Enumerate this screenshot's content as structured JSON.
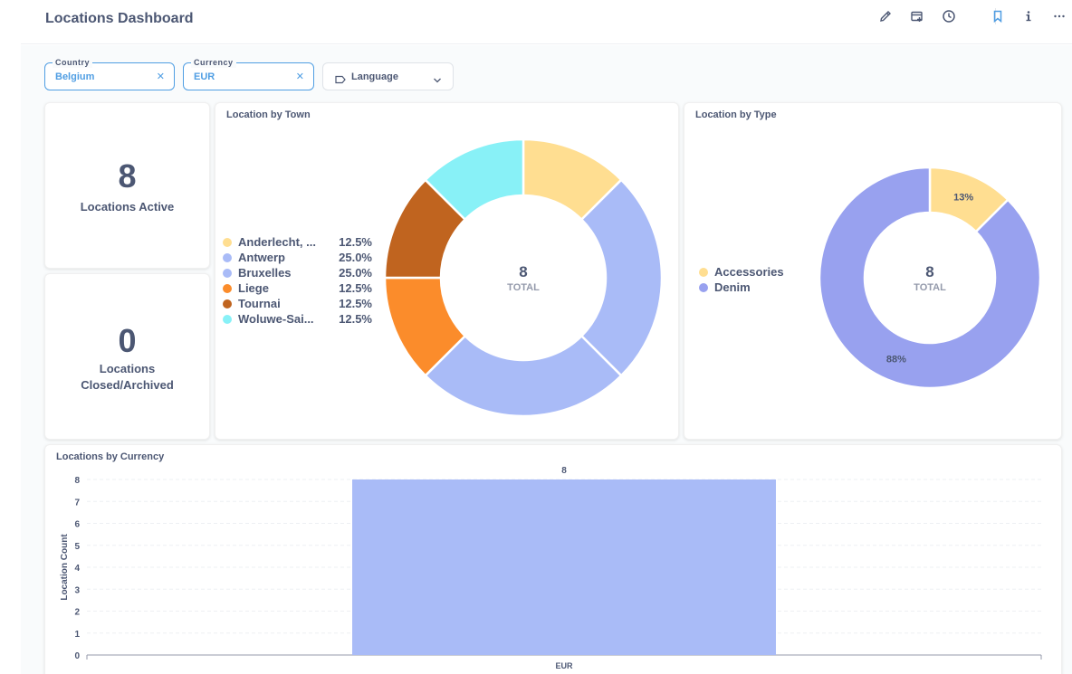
{
  "header": {
    "title": "Locations Dashboard"
  },
  "icons": [
    "pencil-icon",
    "subscription-icon",
    "history-icon",
    "bookmark-icon",
    "info-icon",
    "more-icon"
  ],
  "filters": {
    "country": {
      "label": "Country",
      "value": "Belgium"
    },
    "currency": {
      "label": "Currency",
      "value": "EUR"
    },
    "language": {
      "placeholder": "Language"
    }
  },
  "colors": {
    "accent": "#509ee3",
    "yellow": "#ffde91",
    "periwinkle": "#a9bbf7",
    "orange_dark": "#c0641f",
    "orange": "#fb8c2b",
    "cyan": "#88f1f7",
    "denim": "#98a1ef"
  },
  "scalars": {
    "active": {
      "value": "8",
      "label": "Locations Active"
    },
    "closed": {
      "value": "0",
      "label_line1": "Locations",
      "label_line2": "Closed/Archived"
    }
  },
  "town_card": {
    "title": "Location by Town",
    "center_value": "8",
    "center_label": "TOTAL"
  },
  "type_card": {
    "title": "Location by Type",
    "center_value": "8",
    "center_label": "TOTAL"
  },
  "currency_card": {
    "title": "Locations by Currency"
  },
  "chart_data": [
    {
      "type": "pie",
      "title": "Location by Town",
      "total": 8,
      "slices": [
        {
          "label": "Anderlecht, ...",
          "value": 1,
          "pct": "12.5%",
          "color": "#ffde91"
        },
        {
          "label": "Antwerp",
          "value": 2,
          "pct": "25.0%",
          "color": "#a9bbf7"
        },
        {
          "label": "Bruxelles",
          "value": 2,
          "pct": "25.0%",
          "color": "#a9bbf7"
        },
        {
          "label": "Liege",
          "value": 1,
          "pct": "12.5%",
          "color": "#fb8c2b"
        },
        {
          "label": "Tournai",
          "value": 1,
          "pct": "12.5%",
          "color": "#c0641f"
        },
        {
          "label": "Woluwe-Sai...",
          "value": 1,
          "pct": "12.5%",
          "color": "#88f1f7"
        }
      ]
    },
    {
      "type": "pie",
      "title": "Location by Type",
      "total": 8,
      "slices": [
        {
          "label": "Accessories",
          "value": 1,
          "pct_label": "13%",
          "color": "#ffde91"
        },
        {
          "label": "Denim",
          "value": 7,
          "pct_label": "88%",
          "color": "#98a1ef"
        }
      ]
    },
    {
      "type": "bar",
      "title": "Locations by Currency",
      "categories": [
        "EUR"
      ],
      "values": [
        8
      ],
      "data_labels": [
        "8"
      ],
      "xlabel": "",
      "ylabel": "Location Count",
      "ylim": [
        0,
        8
      ],
      "yticks": [
        "0",
        "1",
        "2",
        "3",
        "4",
        "5",
        "6",
        "7",
        "8"
      ],
      "grid": true,
      "color": "#a9bbf7"
    }
  ]
}
